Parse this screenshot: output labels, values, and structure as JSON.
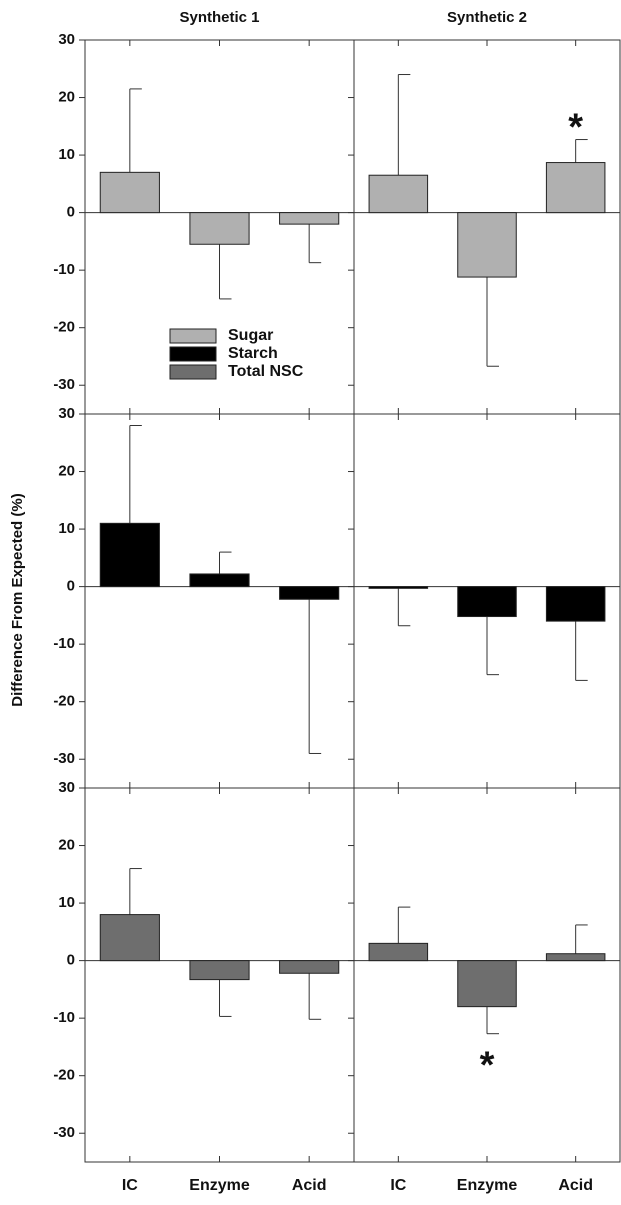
{
  "chart_data": {
    "type": "bar",
    "column_titles": [
      "Synthetic 1",
      "Synthetic 2"
    ],
    "y_label": "Difference From Expected (%)",
    "categories": [
      "IC",
      "Enzyme",
      "Acid"
    ],
    "ylim": [
      -35,
      30
    ],
    "yticks": [
      -30,
      -20,
      -10,
      0,
      10,
      20,
      30
    ],
    "legend": "lower-left",
    "series": [
      {
        "name": "Sugar",
        "color": "#b0b0b0",
        "panels": [
          {
            "values": [
              7,
              -5.5,
              -2
            ],
            "errors": [
              14.5,
              9.5,
              6.7
            ],
            "significance": [
              null,
              null,
              null
            ]
          },
          {
            "values": [
              6.5,
              -11.2,
              8.7
            ],
            "errors": [
              17.5,
              15.5,
              4
            ],
            "significance": [
              null,
              null,
              "*"
            ]
          }
        ]
      },
      {
        "name": "Starch",
        "color": "#000000",
        "panels": [
          {
            "values": [
              11,
              2.2,
              -2.2
            ],
            "errors": [
              17,
              3.8,
              26.8
            ],
            "significance": [
              null,
              null,
              null
            ]
          },
          {
            "values": [
              -0.3,
              -5.2,
              -6
            ],
            "errors": [
              6.5,
              10.1,
              10.3
            ],
            "significance": [
              null,
              null,
              null
            ]
          }
        ]
      },
      {
        "name": "Total NSC",
        "color": "#6e6e6e",
        "panels": [
          {
            "values": [
              8,
              -3.3,
              -2.2
            ],
            "errors": [
              8,
              6.4,
              8
            ],
            "significance": [
              null,
              null,
              null
            ]
          },
          {
            "values": [
              3,
              -8,
              1.2
            ],
            "errors": [
              6.3,
              4.7,
              5
            ],
            "significance": [
              null,
              "*",
              null
            ]
          }
        ]
      }
    ]
  }
}
